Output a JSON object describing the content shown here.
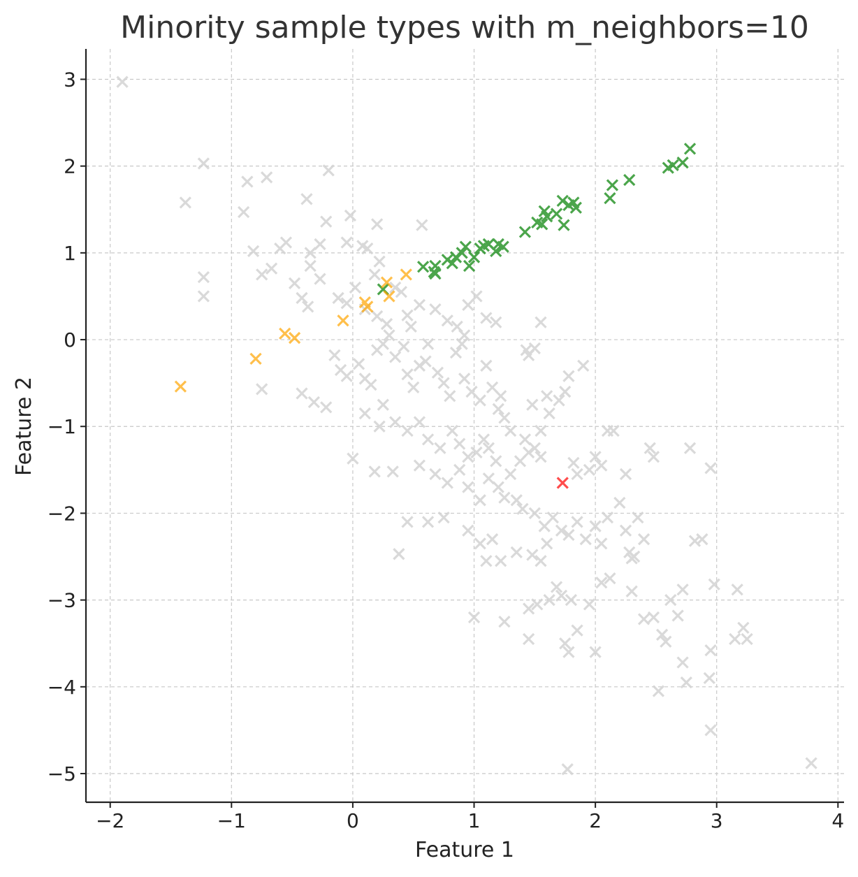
{
  "chart_data": {
    "type": "scatter",
    "title": "Minority sample types with m_neighbors=10",
    "xlabel": "Feature 1",
    "ylabel": "Feature 2",
    "xlim": [
      -2.2,
      4.05
    ],
    "ylim": [
      -5.33,
      3.35
    ],
    "xticks": [
      -2,
      -1,
      0,
      1,
      2,
      3,
      4
    ],
    "yticks": [
      -5,
      -4,
      -3,
      -2,
      -1,
      0,
      1,
      2,
      3
    ],
    "grid": true,
    "marker": "x",
    "series": [
      {
        "color": "#d3d3d3",
        "opacity": 0.85,
        "points": [
          [
            -1.9,
            2.97
          ],
          [
            -1.23,
            2.03
          ],
          [
            -1.38,
            1.58
          ],
          [
            -0.87,
            1.82
          ],
          [
            -0.71,
            1.87
          ],
          [
            -0.2,
            1.95
          ],
          [
            -0.9,
            1.47
          ],
          [
            -0.38,
            1.62
          ],
          [
            -0.02,
            1.43
          ],
          [
            -0.22,
            1.36
          ],
          [
            0.2,
            1.33
          ],
          [
            0.57,
            1.32
          ],
          [
            -0.55,
            1.12
          ],
          [
            -0.82,
            1.02
          ],
          [
            -0.6,
            1.05
          ],
          [
            -0.35,
            1.0
          ],
          [
            -0.27,
            1.1
          ],
          [
            -0.05,
            1.12
          ],
          [
            0.08,
            1.08
          ],
          [
            0.12,
            1.05
          ],
          [
            -1.23,
            0.72
          ],
          [
            -1.23,
            0.5
          ],
          [
            -0.75,
            0.75
          ],
          [
            -0.67,
            0.82
          ],
          [
            -0.35,
            0.85
          ],
          [
            -0.27,
            0.7
          ],
          [
            -0.48,
            0.65
          ],
          [
            -0.42,
            0.48
          ],
          [
            -0.37,
            0.38
          ],
          [
            -0.12,
            0.48
          ],
          [
            0.02,
            0.6
          ],
          [
            0.18,
            0.75
          ],
          [
            0.22,
            0.9
          ],
          [
            0.35,
            0.6
          ],
          [
            0.4,
            0.55
          ],
          [
            0.1,
            0.35
          ],
          [
            -0.05,
            0.42
          ],
          [
            0.2,
            0.27
          ],
          [
            0.28,
            0.18
          ],
          [
            0.45,
            0.28
          ],
          [
            0.48,
            0.15
          ],
          [
            0.55,
            0.4
          ],
          [
            0.68,
            0.35
          ],
          [
            0.78,
            0.22
          ],
          [
            0.86,
            0.15
          ],
          [
            0.92,
            0.05
          ],
          [
            1.02,
            0.5
          ],
          [
            1.1,
            0.25
          ],
          [
            1.18,
            0.2
          ],
          [
            0.95,
            0.4
          ],
          [
            -0.75,
            -0.57
          ],
          [
            -0.42,
            -0.62
          ],
          [
            -0.32,
            -0.72
          ],
          [
            -0.22,
            -0.78
          ],
          [
            -0.15,
            -0.18
          ],
          [
            -0.1,
            -0.35
          ],
          [
            -0.05,
            -0.42
          ],
          [
            0.05,
            -0.28
          ],
          [
            0.1,
            -0.45
          ],
          [
            0.15,
            -0.52
          ],
          [
            0.2,
            -0.12
          ],
          [
            0.25,
            -0.05
          ],
          [
            0.3,
            0.05
          ],
          [
            0.35,
            -0.2
          ],
          [
            0.42,
            -0.08
          ],
          [
            0.45,
            -0.4
          ],
          [
            0.5,
            -0.55
          ],
          [
            0.55,
            -0.3
          ],
          [
            0.6,
            -0.25
          ],
          [
            0.62,
            -0.05
          ],
          [
            0.7,
            -0.38
          ],
          [
            0.75,
            -0.5
          ],
          [
            0.8,
            -0.65
          ],
          [
            0.85,
            -0.15
          ],
          [
            0.9,
            -0.05
          ],
          [
            0.92,
            -0.45
          ],
          [
            0.98,
            -0.6
          ],
          [
            1.05,
            -0.7
          ],
          [
            1.1,
            -0.3
          ],
          [
            1.15,
            -0.55
          ],
          [
            1.2,
            -0.8
          ],
          [
            1.22,
            -0.65
          ],
          [
            1.25,
            -0.9
          ],
          [
            1.3,
            -1.05
          ],
          [
            0.1,
            -0.85
          ],
          [
            0.25,
            -0.75
          ],
          [
            0.35,
            -0.95
          ],
          [
            0.22,
            -1.0
          ],
          [
            0.45,
            -1.05
          ],
          [
            0.55,
            -0.95
          ],
          [
            0.62,
            -1.15
          ],
          [
            0.72,
            -1.25
          ],
          [
            0.82,
            -1.05
          ],
          [
            0.88,
            -1.2
          ],
          [
            0.95,
            -1.35
          ],
          [
            1.02,
            -1.3
          ],
          [
            1.08,
            -1.15
          ],
          [
            1.12,
            -1.25
          ],
          [
            1.18,
            -1.4
          ],
          [
            0.0,
            -1.37
          ],
          [
            0.18,
            -1.52
          ],
          [
            0.33,
            -1.52
          ],
          [
            0.55,
            -1.45
          ],
          [
            0.68,
            -1.55
          ],
          [
            0.78,
            -1.65
          ],
          [
            0.88,
            -1.5
          ],
          [
            0.95,
            -1.7
          ],
          [
            1.05,
            -1.85
          ],
          [
            1.12,
            -1.6
          ],
          [
            1.2,
            -1.7
          ],
          [
            1.25,
            -1.82
          ],
          [
            1.3,
            -1.55
          ],
          [
            1.38,
            -1.4
          ],
          [
            1.45,
            -1.3
          ],
          [
            1.5,
            -1.25
          ],
          [
            1.55,
            -1.35
          ],
          [
            1.42,
            -1.15
          ],
          [
            1.55,
            -1.05
          ],
          [
            1.62,
            -0.85
          ],
          [
            1.48,
            -0.75
          ],
          [
            1.6,
            -0.65
          ],
          [
            1.75,
            -0.6
          ],
          [
            1.78,
            -0.42
          ],
          [
            1.9,
            -0.3
          ],
          [
            1.55,
            0.2
          ],
          [
            1.43,
            -0.12
          ],
          [
            1.45,
            -0.18
          ],
          [
            1.5,
            -0.1
          ],
          [
            1.7,
            -0.7
          ],
          [
            2.1,
            -1.05
          ],
          [
            2.15,
            -1.05
          ],
          [
            2.0,
            -1.35
          ],
          [
            2.05,
            -1.45
          ],
          [
            1.95,
            -1.5
          ],
          [
            1.85,
            -1.55
          ],
          [
            1.82,
            -1.42
          ],
          [
            2.25,
            -1.55
          ],
          [
            2.45,
            -1.25
          ],
          [
            2.48,
            -1.35
          ],
          [
            2.78,
            -1.25
          ],
          [
            2.95,
            -1.48
          ],
          [
            1.35,
            -1.85
          ],
          [
            1.4,
            -1.95
          ],
          [
            1.5,
            -2.0
          ],
          [
            1.58,
            -2.15
          ],
          [
            1.65,
            -2.05
          ],
          [
            1.72,
            -2.2
          ],
          [
            1.78,
            -2.25
          ],
          [
            1.85,
            -2.1
          ],
          [
            1.92,
            -2.3
          ],
          [
            2.0,
            -2.15
          ],
          [
            2.05,
            -2.35
          ],
          [
            2.1,
            -2.05
          ],
          [
            2.25,
            -2.2
          ],
          [
            2.35,
            -2.05
          ],
          [
            2.4,
            -2.3
          ],
          [
            2.2,
            -1.88
          ],
          [
            1.6,
            -2.35
          ],
          [
            1.55,
            -2.55
          ],
          [
            1.48,
            -2.48
          ],
          [
            1.35,
            -2.45
          ],
          [
            1.22,
            -2.55
          ],
          [
            1.15,
            -2.3
          ],
          [
            1.1,
            -2.55
          ],
          [
            1.05,
            -2.35
          ],
          [
            0.95,
            -2.2
          ],
          [
            0.75,
            -2.05
          ],
          [
            0.62,
            -2.1
          ],
          [
            0.45,
            -2.1
          ],
          [
            0.38,
            -2.47
          ],
          [
            1.68,
            -2.85
          ],
          [
            1.72,
            -2.95
          ],
          [
            1.8,
            -3.0
          ],
          [
            1.95,
            -3.05
          ],
          [
            2.05,
            -2.8
          ],
          [
            2.12,
            -2.75
          ],
          [
            2.3,
            -2.9
          ],
          [
            2.4,
            -3.22
          ],
          [
            2.48,
            -3.2
          ],
          [
            2.62,
            -3.0
          ],
          [
            2.72,
            -2.88
          ],
          [
            2.68,
            -3.18
          ],
          [
            2.88,
            -2.3
          ],
          [
            2.82,
            -2.32
          ],
          [
            2.98,
            -2.82
          ],
          [
            1.45,
            -3.1
          ],
          [
            1.52,
            -3.05
          ],
          [
            1.62,
            -3.0
          ],
          [
            1.45,
            -3.45
          ],
          [
            1.75,
            -3.5
          ],
          [
            1.78,
            -3.6
          ],
          [
            1.85,
            -3.35
          ],
          [
            2.0,
            -3.6
          ],
          [
            1.0,
            -3.2
          ],
          [
            1.25,
            -3.25
          ],
          [
            2.55,
            -3.4
          ],
          [
            2.58,
            -3.48
          ],
          [
            2.72,
            -3.72
          ],
          [
            2.75,
            -3.95
          ],
          [
            2.52,
            -4.05
          ],
          [
            2.95,
            -3.58
          ],
          [
            2.94,
            -3.9
          ],
          [
            2.95,
            -4.5
          ],
          [
            3.15,
            -3.45
          ],
          [
            3.22,
            -3.32
          ],
          [
            3.25,
            -3.45
          ],
          [
            3.17,
            -2.88
          ],
          [
            1.77,
            -4.95
          ],
          [
            3.78,
            -4.88
          ],
          [
            2.28,
            -2.45
          ],
          [
            2.32,
            -2.5
          ],
          [
            2.3,
            -2.52
          ]
        ]
      },
      {
        "color": "#008000",
        "opacity": 0.7,
        "points": [
          [
            0.25,
            0.58
          ],
          [
            0.58,
            0.84
          ],
          [
            0.67,
            0.78
          ],
          [
            0.68,
            0.85
          ],
          [
            0.78,
            0.92
          ],
          [
            0.82,
            0.88
          ],
          [
            0.85,
            0.95
          ],
          [
            0.9,
            1.0
          ],
          [
            0.93,
            1.07
          ],
          [
            0.96,
            0.85
          ],
          [
            1.0,
            0.95
          ],
          [
            1.05,
            1.05
          ],
          [
            1.08,
            1.08
          ],
          [
            1.12,
            1.1
          ],
          [
            1.18,
            1.02
          ],
          [
            1.2,
            1.1
          ],
          [
            1.24,
            1.07
          ],
          [
            1.42,
            1.24
          ],
          [
            1.52,
            1.35
          ],
          [
            1.56,
            1.33
          ],
          [
            1.58,
            1.48
          ],
          [
            1.6,
            1.42
          ],
          [
            1.68,
            1.45
          ],
          [
            1.73,
            1.6
          ],
          [
            1.74,
            1.32
          ],
          [
            1.78,
            1.55
          ],
          [
            1.82,
            1.58
          ],
          [
            1.84,
            1.52
          ],
          [
            2.12,
            1.63
          ],
          [
            2.14,
            1.78
          ],
          [
            2.28,
            1.84
          ],
          [
            2.6,
            1.98
          ],
          [
            2.64,
            2.01
          ],
          [
            2.72,
            2.04
          ],
          [
            2.78,
            2.2
          ],
          [
            0.68,
            0.76
          ]
        ]
      },
      {
        "color": "#ffa500",
        "opacity": 0.7,
        "points": [
          [
            -1.42,
            -0.54
          ],
          [
            -0.8,
            -0.22
          ],
          [
            -0.56,
            0.07
          ],
          [
            -0.48,
            0.02
          ],
          [
            -0.08,
            0.22
          ],
          [
            0.1,
            0.43
          ],
          [
            0.12,
            0.38
          ],
          [
            0.28,
            0.66
          ],
          [
            0.3,
            0.5
          ],
          [
            0.44,
            0.75
          ]
        ]
      },
      {
        "color": "#ff0000",
        "opacity": 0.7,
        "points": [
          [
            1.73,
            -1.65
          ]
        ]
      }
    ]
  }
}
